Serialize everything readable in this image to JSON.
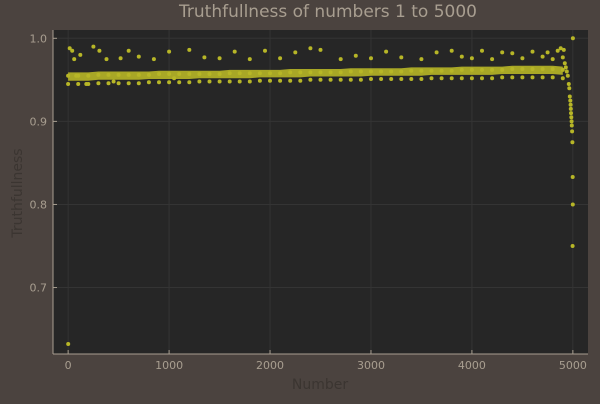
{
  "colors": {
    "figure_background": "#4b433f",
    "plot_background": "#262626",
    "marker": "#b7b627",
    "axis_text": "#a89e90",
    "axis_label_text": "#3b3531",
    "grid": "#343434",
    "axis_line": "#a89e90"
  },
  "chart_data": {
    "type": "scatter",
    "title": "Truthfullness of numbers 1 to 5000",
    "xlabel": "Number",
    "ylabel": "Truthfullness",
    "xlim": [
      -150,
      5150
    ],
    "ylim": [
      0.62,
      1.01
    ],
    "xticks": [
      0,
      1000,
      2000,
      3000,
      4000,
      5000
    ],
    "xtick_labels": [
      "0",
      "1000",
      "2000",
      "3000",
      "4000",
      "5000"
    ],
    "yticks": [
      0.7,
      0.8,
      0.9,
      1.0
    ],
    "ytick_labels": [
      "0.7",
      "0.8",
      "0.9",
      "1.0"
    ],
    "grid": true,
    "legend": false,
    "marker_color": "#b7b627",
    "series": [
      {
        "x": [
          1,
          15,
          40,
          60,
          80,
          120,
          180,
          250,
          310,
          380,
          450,
          520,
          600,
          700,
          850,
          1000,
          1050,
          1200,
          1350,
          1500,
          1650,
          1800,
          1950,
          2100,
          2250,
          2400,
          2500,
          2700,
          2850,
          3000,
          3150,
          3300,
          3500,
          3650,
          3800,
          3900,
          4000,
          4100,
          4200,
          4300,
          4400,
          4500,
          4600,
          4700,
          4750,
          4800,
          4850,
          4880,
          4900,
          4910,
          4920,
          4930,
          4940,
          4950,
          4960,
          4965,
          4970,
          4975,
          4978,
          4980,
          4982,
          4985,
          4988,
          4990,
          4992,
          4995,
          4998,
          5000,
          4999,
          4997
        ],
        "y": [
          0.632,
          0.988,
          0.985,
          0.975,
          0.955,
          0.98,
          0.945,
          0.99,
          0.985,
          0.975,
          0.948,
          0.976,
          0.985,
          0.978,
          0.975,
          0.984,
          0.952,
          0.986,
          0.977,
          0.976,
          0.984,
          0.975,
          0.985,
          0.976,
          0.983,
          0.988,
          0.986,
          0.975,
          0.979,
          0.976,
          0.984,
          0.977,
          0.975,
          0.983,
          0.985,
          0.978,
          0.976,
          0.985,
          0.975,
          0.983,
          0.982,
          0.976,
          0.984,
          0.978,
          0.983,
          0.975,
          0.985,
          0.988,
          0.977,
          0.986,
          0.97,
          0.965,
          0.96,
          0.955,
          0.945,
          0.94,
          0.93,
          0.925,
          0.92,
          0.915,
          0.91,
          0.905,
          0.9,
          0.895,
          0.888,
          0.875,
          0.833,
          1.0,
          0.8,
          0.75
        ]
      },
      {
        "x": [
          0,
          100,
          200,
          300,
          400,
          500,
          600,
          700,
          800,
          900,
          1000,
          1100,
          1200,
          1300,
          1400,
          1500,
          1600,
          1700,
          1800,
          1900,
          2000,
          2100,
          2200,
          2300,
          2400,
          2500,
          2600,
          2700,
          2800,
          2900,
          3000,
          3100,
          3200,
          3300,
          3400,
          3500,
          3600,
          3700,
          3800,
          3900,
          4000,
          4100,
          4200,
          4300,
          4400,
          4500,
          4600,
          4700,
          4800,
          4900
        ],
        "y": [
          0.955,
          0.955,
          0.955,
          0.956,
          0.956,
          0.956,
          0.956,
          0.956,
          0.956,
          0.957,
          0.957,
          0.957,
          0.957,
          0.957,
          0.957,
          0.957,
          0.958,
          0.958,
          0.958,
          0.958,
          0.958,
          0.958,
          0.959,
          0.959,
          0.959,
          0.959,
          0.959,
          0.959,
          0.96,
          0.96,
          0.96,
          0.96,
          0.96,
          0.96,
          0.961,
          0.961,
          0.961,
          0.961,
          0.961,
          0.962,
          0.962,
          0.962,
          0.962,
          0.962,
          0.963,
          0.963,
          0.963,
          0.963,
          0.963,
          0.962
        ]
      },
      {
        "x": [
          0,
          100,
          200,
          300,
          400,
          500,
          600,
          700,
          800,
          900,
          1000,
          1100,
          1200,
          1300,
          1400,
          1500,
          1600,
          1700,
          1800,
          1900,
          2000,
          2100,
          2200,
          2300,
          2400,
          2500,
          2600,
          2700,
          2800,
          2900,
          3000,
          3100,
          3200,
          3300,
          3400,
          3500,
          3600,
          3700,
          3800,
          3900,
          4000,
          4100,
          4200,
          4300,
          4400,
          4500,
          4600,
          4700,
          4800,
          4900
        ],
        "y": [
          0.945,
          0.945,
          0.945,
          0.946,
          0.946,
          0.946,
          0.946,
          0.946,
          0.947,
          0.947,
          0.947,
          0.947,
          0.947,
          0.948,
          0.948,
          0.948,
          0.948,
          0.948,
          0.948,
          0.949,
          0.949,
          0.949,
          0.949,
          0.949,
          0.95,
          0.95,
          0.95,
          0.95,
          0.95,
          0.95,
          0.951,
          0.951,
          0.951,
          0.951,
          0.951,
          0.951,
          0.952,
          0.952,
          0.952,
          0.952,
          0.952,
          0.952,
          0.952,
          0.953,
          0.953,
          0.953,
          0.953,
          0.953,
          0.953,
          0.952
        ]
      }
    ]
  }
}
